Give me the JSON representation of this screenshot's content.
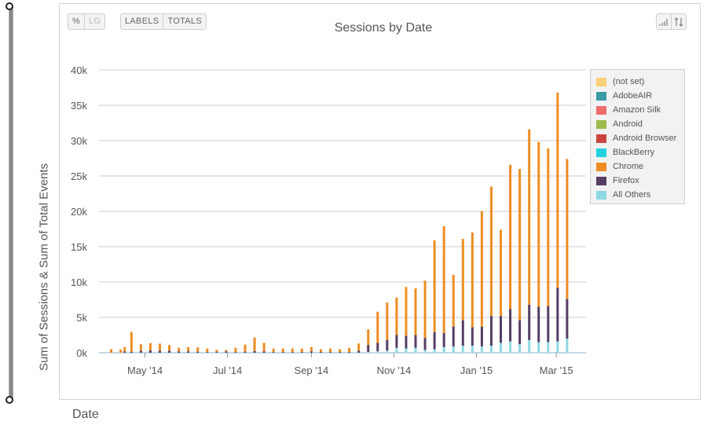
{
  "toolbar": {
    "percent_label": "%",
    "log_label": "LG",
    "labels_label": "LABELS",
    "totals_label": "TOTALS",
    "bars_icon": "signal-bars-icon",
    "sort_icon": "sort-arrows-icon"
  },
  "axis_title_y": "Sum of Sessions & Sum of Total Events",
  "axis_title_x": "Date",
  "colors": {
    "(not set)": "#fdd07a",
    "AdobeAIR": "#3a9aa6",
    "Amazon Silk": "#ef6b6b",
    "Android": "#9bbb4a",
    "Android Browser": "#cc4440",
    "BlackBerry": "#22d2e0",
    "Chrome": "#ee8d22",
    "Firefox": "#553e63",
    "All Others": "#8dd8e2",
    "gridline": "#cccccc"
  },
  "chart_data": {
    "type": "bar",
    "stacked": true,
    "title": "Sessions by Date",
    "xlabel": "Date",
    "ylabel": "Sum of Sessions & Sum of Total Events",
    "ylim": [
      0,
      40000
    ],
    "y_ticks": [
      "0k",
      "5k",
      "10k",
      "15k",
      "20k",
      "25k",
      "30k",
      "35k",
      "40k"
    ],
    "x_tick_labels": [
      "May '14",
      "Jul '14",
      "Sep '14",
      "Nov '14",
      "Jan '15",
      "Mar '15"
    ],
    "x_ticks": [
      "2014-05-01",
      "2014-07-01",
      "2014-09-01",
      "2014-11-01",
      "2015-01-01",
      "2015-03-01"
    ],
    "x_range": [
      "2014-03-28",
      "2015-03-23"
    ],
    "grid": true,
    "legend_position": "right",
    "legend": [
      "(not set)",
      "AdobeAIR",
      "Amazon Silk",
      "Android",
      "Android Browser",
      "BlackBerry",
      "Chrome",
      "Firefox",
      "All Others"
    ],
    "x": [
      "2014-04-06",
      "2014-04-13",
      "2014-04-16",
      "2014-04-21",
      "2014-04-28",
      "2014-05-05",
      "2014-05-12",
      "2014-05-19",
      "2014-05-26",
      "2014-06-02",
      "2014-06-09",
      "2014-06-16",
      "2014-06-23",
      "2014-06-30",
      "2014-07-07",
      "2014-07-14",
      "2014-07-21",
      "2014-07-28",
      "2014-08-04",
      "2014-08-11",
      "2014-08-18",
      "2014-08-25",
      "2014-09-01",
      "2014-09-08",
      "2014-09-15",
      "2014-09-22",
      "2014-09-29",
      "2014-10-06",
      "2014-10-13",
      "2014-10-20",
      "2014-10-27",
      "2014-11-03",
      "2014-11-10",
      "2014-11-17",
      "2014-11-24",
      "2014-12-01",
      "2014-12-08",
      "2014-12-15",
      "2014-12-22",
      "2014-12-29",
      "2015-01-05",
      "2015-01-12",
      "2015-01-19",
      "2015-01-26",
      "2015-02-02",
      "2015-02-09",
      "2015-02-16",
      "2015-02-23",
      "2015-03-02",
      "2015-03-09"
    ],
    "series": [
      {
        "name": "All Others",
        "values": [
          0,
          0,
          0,
          0,
          0,
          0,
          0,
          0,
          0,
          0,
          0,
          0,
          0,
          0,
          0,
          0,
          0,
          0,
          0,
          0,
          0,
          0,
          0,
          0,
          0,
          0,
          0,
          0,
          100,
          200,
          300,
          700,
          600,
          700,
          400,
          500,
          800,
          900,
          1000,
          1000,
          900,
          1000,
          1400,
          1600,
          1200,
          1800,
          1500,
          1500,
          1600,
          2000
        ]
      },
      {
        "name": "Firefox",
        "values": [
          0,
          0,
          200,
          150,
          300,
          350,
          300,
          300,
          200,
          200,
          150,
          100,
          100,
          200,
          100,
          150,
          250,
          200,
          100,
          100,
          100,
          100,
          200,
          100,
          100,
          100,
          100,
          300,
          1000,
          1200,
          1500,
          1800,
          1800,
          1800,
          1700,
          2400,
          2000,
          2800,
          3600,
          2600,
          2800,
          4200,
          3800,
          4600,
          3400,
          5000,
          5000,
          5100,
          7600,
          5600
        ]
      },
      {
        "name": "Chrome",
        "values": [
          500,
          450,
          600,
          2800,
          900,
          1000,
          1000,
          800,
          500,
          600,
          600,
          500,
          300,
          200,
          600,
          1000,
          1900,
          1200,
          500,
          500,
          500,
          500,
          600,
          400,
          500,
          400,
          600,
          1000,
          2200,
          4400,
          5300,
          5300,
          6900,
          6600,
          8100,
          13000,
          15100,
          7300,
          11500,
          13400,
          16300,
          18300,
          12200,
          20400,
          21400,
          24800,
          23300,
          22300,
          27600,
          19800
        ]
      }
    ]
  }
}
